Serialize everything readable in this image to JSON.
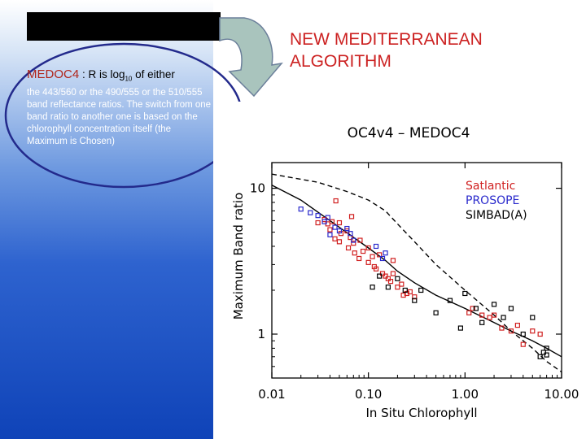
{
  "description": {
    "box_text": "",
    "label": "MEDOC4",
    "head_sep": " : ",
    "head_pre": "R is log",
    "head_sub": "10",
    "head_post": " of either",
    "body": "the 443/560 or the 490/555 or the 510/555 band reflectance ratios. The switch from one band ratio to another one is based on the chlorophyll concentration itself (the Maximum is Chosen)"
  },
  "headline": "NEW MEDITERRANEAN ALGORITHM",
  "colors": {
    "accent_red": "#cc2222",
    "box": "#000000",
    "arrow_fill": "#a9c4bd",
    "ellipse": "#232a8c"
  },
  "chart_data": {
    "type": "scatter",
    "title": "OC4v4 – MEDOC4",
    "xlabel": "In Situ Chlorophyll",
    "ylabel": "Maximum Band ratio",
    "xscale": "log",
    "yscale": "log",
    "xlim": [
      0.01,
      10.0
    ],
    "ylim": [
      0.5,
      15.0
    ],
    "xticks": [
      0.01,
      0.1,
      1.0,
      10.0
    ],
    "xtick_labels": [
      "0.01",
      "0.10",
      "1.00",
      "10.00"
    ],
    "yticks": [
      1,
      10
    ],
    "ytick_labels": [
      "1",
      "10"
    ],
    "legend_position": "top-right",
    "legend": [
      {
        "label": "Satlantic",
        "color": "#d02020"
      },
      {
        "label": "PROSOPE",
        "color": "#2a2acc"
      },
      {
        "label": "SIMBAD(A)",
        "color": "#000000"
      }
    ],
    "series": [
      {
        "name": "Satlantic",
        "color": "#d02020",
        "marker": "open-square",
        "points": [
          [
            0.03,
            5.8
          ],
          [
            0.035,
            6.1
          ],
          [
            0.038,
            5.7
          ],
          [
            0.04,
            5.2
          ],
          [
            0.042,
            5.9
          ],
          [
            0.045,
            4.5
          ],
          [
            0.05,
            5.8
          ],
          [
            0.05,
            4.3
          ],
          [
            0.052,
            4.9
          ],
          [
            0.06,
            5.1
          ],
          [
            0.062,
            3.9
          ],
          [
            0.065,
            4.6
          ],
          [
            0.07,
            4.2
          ],
          [
            0.072,
            3.6
          ],
          [
            0.08,
            3.3
          ],
          [
            0.082,
            4.4
          ],
          [
            0.088,
            3.7
          ],
          [
            0.1,
            3.9
          ],
          [
            0.1,
            3.1
          ],
          [
            0.11,
            3.4
          ],
          [
            0.115,
            2.9
          ],
          [
            0.12,
            2.8
          ],
          [
            0.13,
            3.5
          ],
          [
            0.14,
            2.6
          ],
          [
            0.15,
            2.5
          ],
          [
            0.16,
            2.4
          ],
          [
            0.17,
            2.3
          ],
          [
            0.18,
            2.6
          ],
          [
            0.2,
            2.1
          ],
          [
            0.22,
            2.2
          ],
          [
            0.23,
            1.85
          ],
          [
            0.25,
            1.9
          ],
          [
            0.27,
            1.95
          ],
          [
            0.3,
            1.8
          ],
          [
            0.046,
            8.2
          ],
          [
            0.067,
            6.4
          ],
          [
            0.18,
            3.2
          ],
          [
            1.1,
            1.4
          ],
          [
            1.2,
            1.5
          ],
          [
            1.5,
            1.35
          ],
          [
            1.8,
            1.3
          ],
          [
            2.0,
            1.35
          ],
          [
            2.4,
            1.1
          ],
          [
            3.0,
            1.05
          ],
          [
            3.5,
            1.15
          ],
          [
            4.0,
            0.85
          ],
          [
            5.0,
            1.05
          ],
          [
            6.0,
            1.0
          ]
        ]
      },
      {
        "name": "PROSOPE",
        "color": "#2a2acc",
        "marker": "open-square",
        "points": [
          [
            0.02,
            7.2
          ],
          [
            0.025,
            6.8
          ],
          [
            0.03,
            6.5
          ],
          [
            0.035,
            5.9
          ],
          [
            0.038,
            6.3
          ],
          [
            0.04,
            4.8
          ],
          [
            0.045,
            5.4
          ],
          [
            0.05,
            5.1
          ],
          [
            0.06,
            5.3
          ],
          [
            0.065,
            4.9
          ],
          [
            0.07,
            4.4
          ],
          [
            0.15,
            3.6
          ],
          [
            0.12,
            4.0
          ],
          [
            0.14,
            3.3
          ]
        ]
      },
      {
        "name": "SIMBAD(A)",
        "color": "#000000",
        "marker": "open-square",
        "points": [
          [
            0.11,
            2.1
          ],
          [
            0.13,
            2.5
          ],
          [
            0.16,
            2.1
          ],
          [
            0.2,
            2.4
          ],
          [
            0.24,
            2.0
          ],
          [
            0.3,
            1.7
          ],
          [
            0.35,
            2.0
          ],
          [
            0.5,
            1.4
          ],
          [
            0.7,
            1.7
          ],
          [
            0.9,
            1.1
          ],
          [
            1.0,
            1.9
          ],
          [
            1.3,
            1.5
          ],
          [
            1.5,
            1.2
          ],
          [
            2.0,
            1.6
          ],
          [
            2.5,
            1.3
          ],
          [
            3.0,
            1.5
          ],
          [
            4.0,
            1.0
          ],
          [
            5.0,
            1.3
          ],
          [
            6.0,
            0.7
          ],
          [
            6.5,
            0.75
          ],
          [
            7.0,
            0.8
          ],
          [
            7.0,
            0.72
          ]
        ]
      }
    ],
    "curves": [
      {
        "name": "OC4v4",
        "style": "dashed",
        "color": "#000000",
        "points": [
          [
            0.01,
            12.5
          ],
          [
            0.03,
            11.0
          ],
          [
            0.06,
            9.5
          ],
          [
            0.1,
            8.3
          ],
          [
            0.15,
            7.0
          ],
          [
            0.2,
            5.7
          ],
          [
            0.3,
            4.3
          ],
          [
            0.5,
            3.0
          ],
          [
            1.0,
            2.0
          ],
          [
            2.0,
            1.35
          ],
          [
            3.0,
            1.05
          ],
          [
            5.0,
            0.8
          ],
          [
            7.0,
            0.65
          ],
          [
            10.0,
            0.55
          ]
        ]
      },
      {
        "name": "MEDOC4",
        "style": "solid",
        "color": "#000000",
        "points": [
          [
            0.01,
            10.5
          ],
          [
            0.02,
            8.3
          ],
          [
            0.05,
            5.4
          ],
          [
            0.1,
            3.9
          ],
          [
            0.15,
            3.2
          ],
          [
            0.2,
            2.7
          ],
          [
            0.3,
            2.25
          ],
          [
            0.5,
            1.85
          ],
          [
            1.0,
            1.5
          ],
          [
            2.0,
            1.2
          ],
          [
            3.0,
            1.05
          ],
          [
            5.0,
            0.9
          ],
          [
            7.0,
            0.8
          ],
          [
            10.0,
            0.7
          ]
        ]
      }
    ]
  }
}
